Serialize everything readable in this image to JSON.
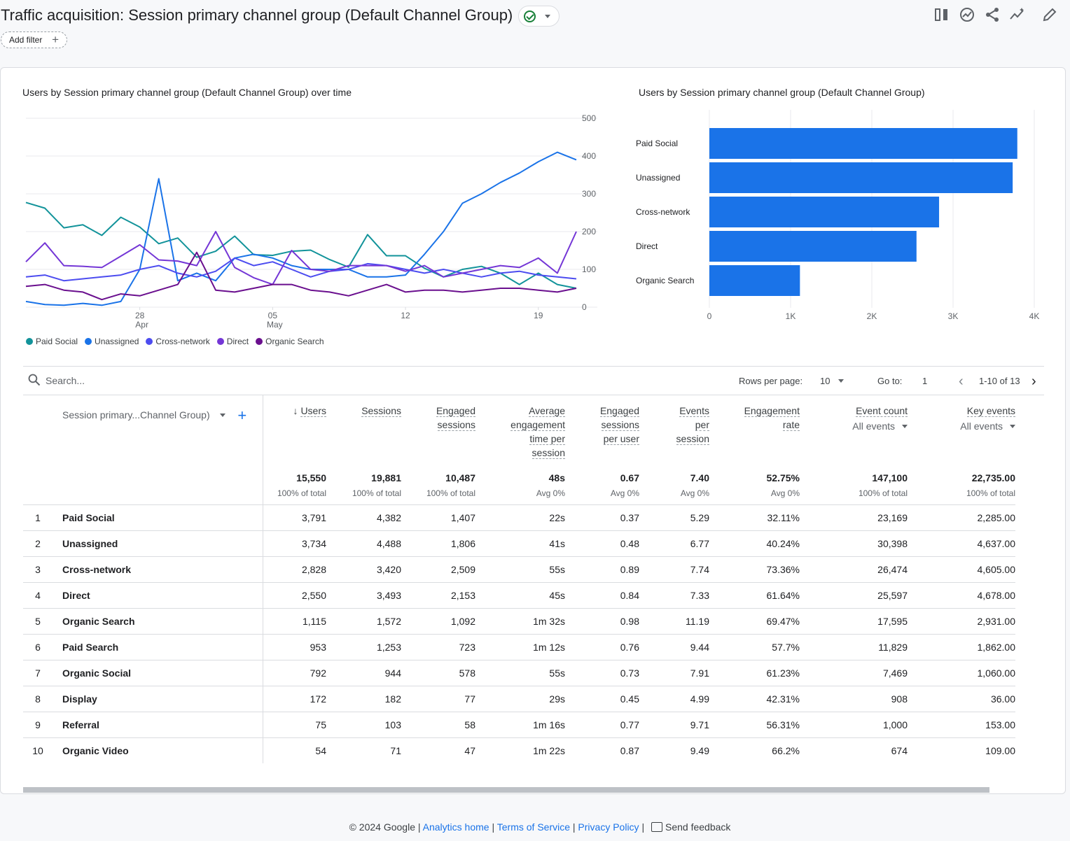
{
  "header": {
    "title": "Traffic acquisition: Session primary channel group (Default Channel Group)",
    "add_filter_label": "Add filter",
    "toolbar_icons": [
      "compare-icon",
      "insights-icon",
      "share-icon",
      "trend-icon",
      "edit-icon"
    ]
  },
  "line_chart": {
    "title": "Users by Session primary channel group (Default Channel Group) over time",
    "y_ticks": [
      "500",
      "400",
      "300",
      "200",
      "100",
      "0"
    ],
    "x_ticks": [
      {
        "day": "28",
        "month": "Apr"
      },
      {
        "day": "05",
        "month": "May"
      },
      {
        "day": "12",
        "month": ""
      },
      {
        "day": "19",
        "month": ""
      }
    ]
  },
  "chart_data": [
    {
      "type": "line",
      "title": "Users by Session primary channel group (Default Channel Group) over time",
      "x": [
        "Apr 22",
        "Apr 23",
        "Apr 24",
        "Apr 25",
        "Apr 26",
        "Apr 27",
        "Apr 28",
        "Apr 29",
        "Apr 30",
        "May 1",
        "May 2",
        "May 3",
        "May 4",
        "May 5",
        "May 6",
        "May 7",
        "May 8",
        "May 9",
        "May 10",
        "May 11",
        "May 12",
        "May 13",
        "May 14",
        "May 15",
        "May 16",
        "May 17",
        "May 18",
        "May 19",
        "May 20",
        "May 21"
      ],
      "ylim": [
        0,
        500
      ],
      "series": [
        {
          "name": "Paid Social",
          "color": "#12939a",
          "values": [
            277,
            262,
            210,
            218,
            190,
            238,
            212,
            168,
            183,
            132,
            148,
            188,
            139,
            137,
            148,
            151,
            126,
            106,
            192,
            136,
            136,
            103,
            80,
            100,
            108,
            90,
            60,
            90,
            60,
            50
          ]
        },
        {
          "name": "Unassigned",
          "color": "#1a73e8",
          "values": [
            15,
            7,
            5,
            10,
            5,
            15,
            100,
            340,
            70,
            90,
            70,
            130,
            140,
            130,
            110,
            100,
            100,
            100,
            80,
            80,
            85,
            140,
            200,
            275,
            300,
            330,
            355,
            385,
            410,
            390
          ]
        },
        {
          "name": "Cross-network",
          "color": "#4c4cf0",
          "values": [
            80,
            85,
            70,
            75,
            80,
            85,
            100,
            110,
            90,
            80,
            95,
            130,
            110,
            120,
            100,
            80,
            95,
            100,
            115,
            110,
            100,
            90,
            100,
            90,
            80,
            90,
            95,
            85,
            80,
            75
          ]
        },
        {
          "name": "Direct",
          "color": "#7436d6",
          "values": [
            120,
            170,
            110,
            108,
            105,
            135,
            165,
            125,
            122,
            110,
            200,
            105,
            78,
            60,
            150,
            100,
            95,
            110,
            110,
            110,
            95,
            110,
            80,
            90,
            100,
            110,
            105,
            130,
            90,
            200
          ]
        },
        {
          "name": "Organic Search",
          "color": "#6a0f8e",
          "values": [
            55,
            60,
            45,
            40,
            20,
            35,
            30,
            45,
            60,
            145,
            45,
            40,
            50,
            60,
            60,
            45,
            40,
            30,
            45,
            60,
            40,
            45,
            45,
            40,
            45,
            50,
            50,
            45,
            40,
            50
          ]
        }
      ]
    },
    {
      "type": "bar",
      "title": "Users by Session primary channel group (Default Channel Group)",
      "categories": [
        "Paid Social",
        "Unassigned",
        "Cross-network",
        "Direct",
        "Organic Search"
      ],
      "values": [
        3791,
        3734,
        2828,
        2550,
        1115
      ],
      "xlim": [
        0,
        4000
      ],
      "x_ticks": [
        "0",
        "1K",
        "2K",
        "3K",
        "4K"
      ],
      "color": "#1a73e8"
    }
  ],
  "table": {
    "search_placeholder": "Search...",
    "rows_per_page_label": "Rows per page:",
    "rows_per_page_value": "10",
    "goto_label": "Go to:",
    "goto_value": "1",
    "range_label": "1-10 of 13",
    "dimension_header": "Session primary...Channel Group)",
    "columns": [
      {
        "label": [
          "Users"
        ],
        "sort": "desc"
      },
      {
        "label": [
          "Sessions"
        ]
      },
      {
        "label": [
          "Engaged",
          "sessions"
        ]
      },
      {
        "label": [
          "Average",
          "engagement",
          "time per",
          "session"
        ]
      },
      {
        "label": [
          "Engaged",
          "sessions",
          "per user"
        ]
      },
      {
        "label": [
          "Events",
          "per",
          "session"
        ]
      },
      {
        "label": [
          "Engagement",
          "rate"
        ]
      },
      {
        "label": [
          "Event count"
        ],
        "sub": "All events"
      },
      {
        "label": [
          "Key events"
        ],
        "sub": "All events"
      }
    ],
    "totals": [
      {
        "value": "15,550",
        "sub": "100% of total"
      },
      {
        "value": "19,881",
        "sub": "100% of total"
      },
      {
        "value": "10,487",
        "sub": "100% of total"
      },
      {
        "value": "48s",
        "sub": "Avg 0%"
      },
      {
        "value": "0.67",
        "sub": "Avg 0%"
      },
      {
        "value": "7.40",
        "sub": "Avg 0%"
      },
      {
        "value": "52.75%",
        "sub": "Avg 0%"
      },
      {
        "value": "147,100",
        "sub": "100% of total"
      },
      {
        "value": "22,735.00",
        "sub": "100% of total"
      }
    ],
    "rows": [
      {
        "idx": "1",
        "name": "Paid Social",
        "cells": [
          "3,791",
          "4,382",
          "1,407",
          "22s",
          "0.37",
          "5.29",
          "32.11%",
          "23,169",
          "2,285.00"
        ]
      },
      {
        "idx": "2",
        "name": "Unassigned",
        "cells": [
          "3,734",
          "4,488",
          "1,806",
          "41s",
          "0.48",
          "6.77",
          "40.24%",
          "30,398",
          "4,637.00"
        ]
      },
      {
        "idx": "3",
        "name": "Cross-network",
        "cells": [
          "2,828",
          "3,420",
          "2,509",
          "55s",
          "0.89",
          "7.74",
          "73.36%",
          "26,474",
          "4,605.00"
        ]
      },
      {
        "idx": "4",
        "name": "Direct",
        "cells": [
          "2,550",
          "3,493",
          "2,153",
          "45s",
          "0.84",
          "7.33",
          "61.64%",
          "25,597",
          "4,678.00"
        ]
      },
      {
        "idx": "5",
        "name": "Organic Search",
        "cells": [
          "1,115",
          "1,572",
          "1,092",
          "1m 32s",
          "0.98",
          "11.19",
          "69.47%",
          "17,595",
          "2,931.00"
        ]
      },
      {
        "idx": "6",
        "name": "Paid Search",
        "cells": [
          "953",
          "1,253",
          "723",
          "1m 12s",
          "0.76",
          "9.44",
          "57.7%",
          "11,829",
          "1,862.00"
        ]
      },
      {
        "idx": "7",
        "name": "Organic Social",
        "cells": [
          "792",
          "944",
          "578",
          "55s",
          "0.73",
          "7.91",
          "61.23%",
          "7,469",
          "1,060.00"
        ]
      },
      {
        "idx": "8",
        "name": "Display",
        "cells": [
          "172",
          "182",
          "77",
          "29s",
          "0.45",
          "4.99",
          "42.31%",
          "908",
          "36.00"
        ]
      },
      {
        "idx": "9",
        "name": "Referral",
        "cells": [
          "75",
          "103",
          "58",
          "1m 16s",
          "0.77",
          "9.71",
          "56.31%",
          "1,000",
          "153.00"
        ]
      },
      {
        "idx": "10",
        "name": "Organic Video",
        "cells": [
          "54",
          "71",
          "47",
          "1m 22s",
          "0.87",
          "9.49",
          "66.2%",
          "674",
          "109.00"
        ]
      }
    ]
  },
  "footer": {
    "copyright": "© 2024 Google |",
    "analytics_home": "Analytics home",
    "sep1": "|",
    "terms": "Terms of Service",
    "sep2": "|",
    "privacy": "Privacy Policy",
    "sep3": "|",
    "feedback": "Send feedback"
  }
}
